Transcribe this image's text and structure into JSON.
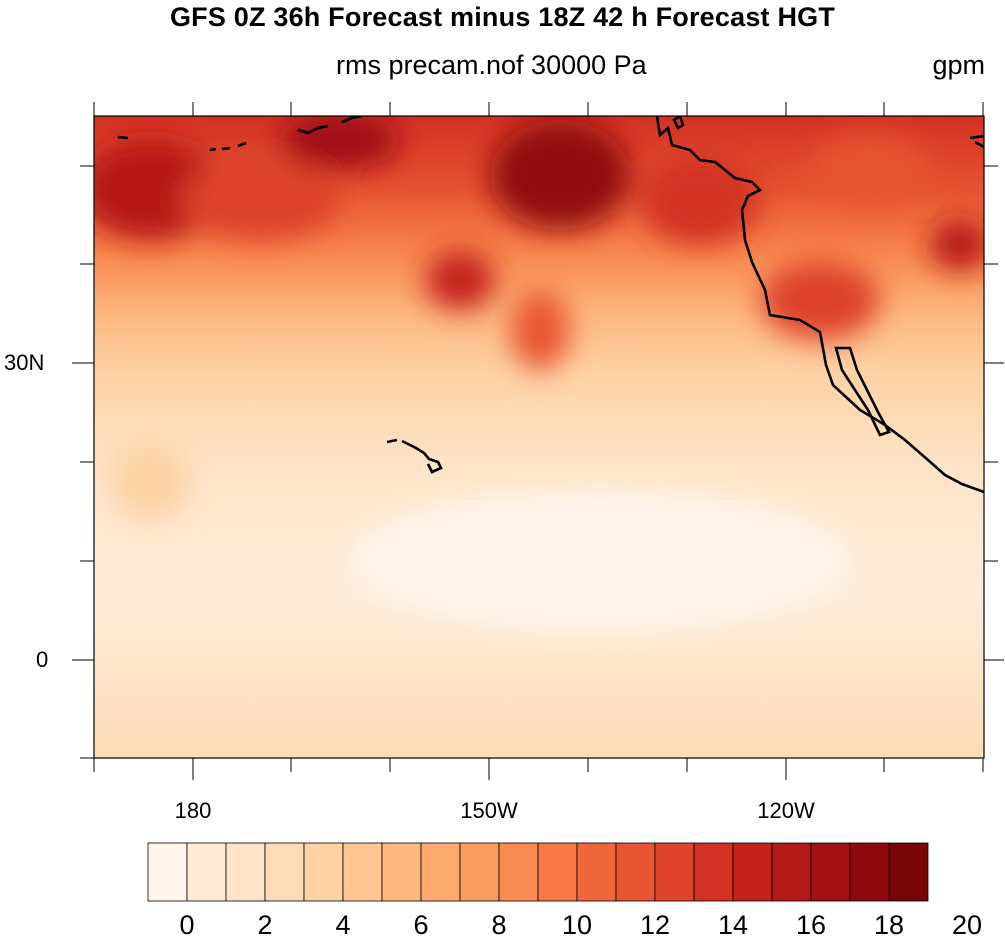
{
  "title": "GFS 0Z 36h Forecast minus 18Z 42 h Forecast HGT",
  "subtitle": "rms precam.nof 30000 Pa",
  "units": "gpm",
  "map": {
    "lat_labels": [
      {
        "label": "30N",
        "lat": 30
      },
      {
        "label": "0",
        "lat": 0
      }
    ],
    "lon_labels": [
      {
        "label": "180",
        "lon": 180
      },
      {
        "label": "150W",
        "lon": 210
      },
      {
        "label": "120W",
        "lon": 240
      }
    ],
    "lat_range": [
      -10,
      55
    ],
    "lon_range": [
      170,
      260
    ],
    "features": [
      "west-coast-north-america",
      "hawaiian-islands",
      "aleutian-islands",
      "baja-california"
    ]
  },
  "colorbar": {
    "labels": [
      "0",
      "2",
      "4",
      "6",
      "8",
      "10",
      "12",
      "14",
      "16",
      "18",
      "20"
    ],
    "colors": [
      "#fff5eb",
      "#feecd9",
      "#fee4c8",
      "#fddbb6",
      "#fdd2a4",
      "#fdc692",
      "#fdb880",
      "#fcaa6f",
      "#fb9c5f",
      "#f98a51",
      "#f67946",
      "#f0663c",
      "#e85533",
      "#de432b",
      "#d23123",
      "#c4231d",
      "#b51917",
      "#a31012",
      "#8f0a0d",
      "#7a0509"
    ]
  }
}
